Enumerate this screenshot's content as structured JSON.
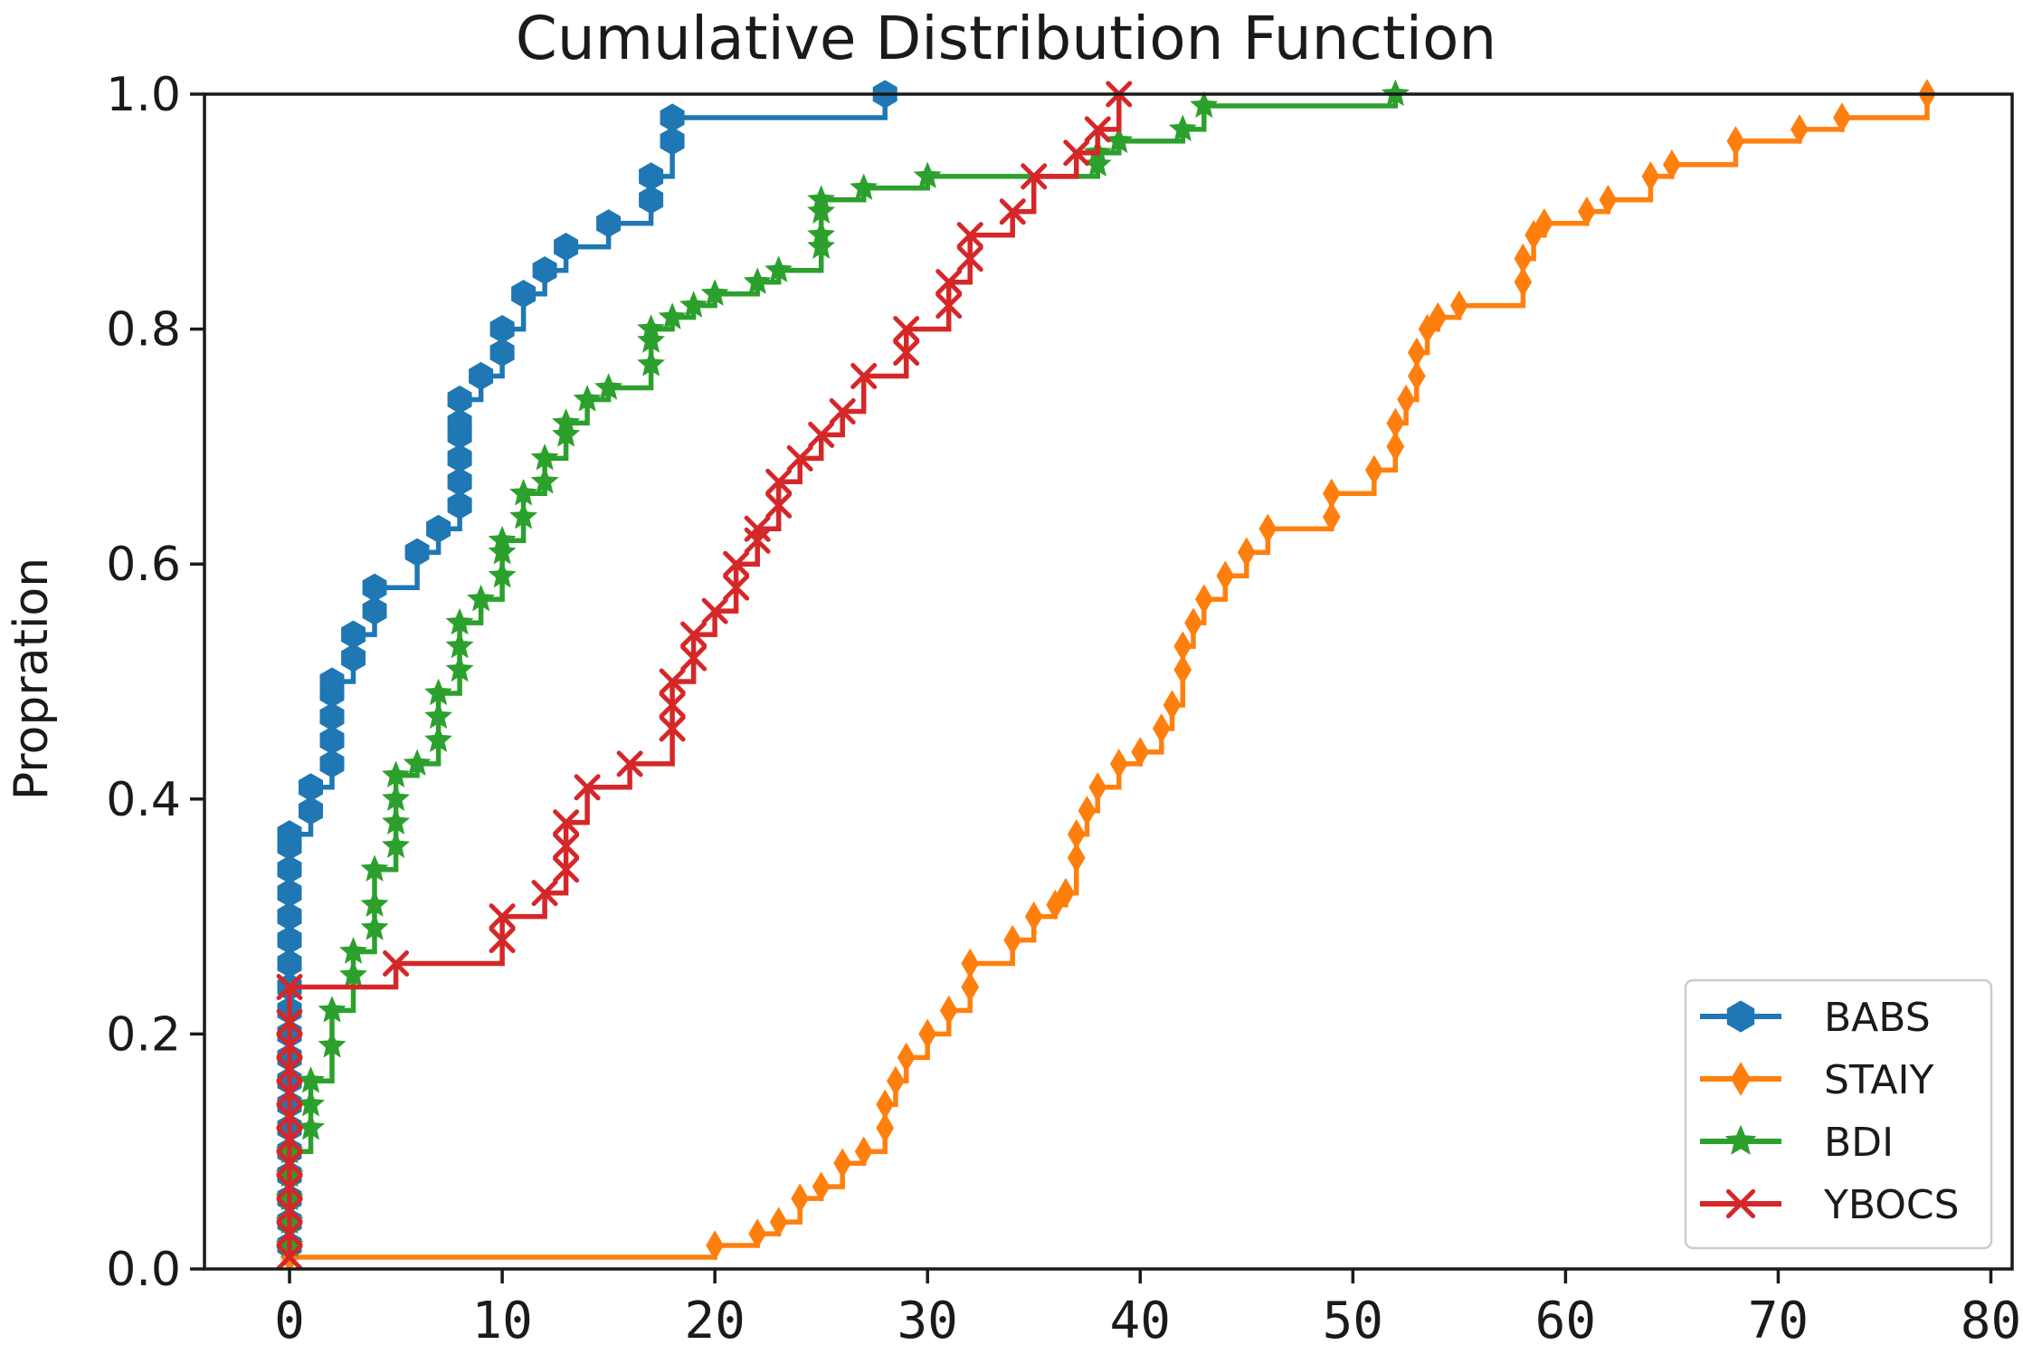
{
  "chart_data": {
    "type": "line",
    "title": "Cumulative Distribution Function",
    "xlabel": "",
    "ylabel": "Propration",
    "xlim": [
      -4,
      81
    ],
    "ylim": [
      0,
      1
    ],
    "x_ticks": [
      0,
      10,
      20,
      30,
      40,
      50,
      60,
      70,
      80
    ],
    "y_ticks": [
      0.0,
      0.2,
      0.4,
      0.6,
      0.8,
      1.0
    ],
    "y_tick_labels": [
      "0.0",
      "0.2",
      "0.4",
      "0.6",
      "0.8",
      "1.0"
    ],
    "grid": false,
    "legend_position": "lower-right",
    "series": [
      {
        "name": "BABS",
        "color": "#1f77b4",
        "marker": "hexagon",
        "x": [
          0,
          0,
          0,
          0,
          0,
          0,
          0,
          0,
          0,
          0,
          0,
          0,
          0,
          0,
          0,
          0,
          0,
          0,
          0,
          1,
          1,
          2,
          2,
          2,
          2,
          2,
          3,
          3,
          4,
          4,
          6,
          7,
          8,
          8,
          8,
          8,
          8,
          8,
          9,
          10,
          10,
          11,
          12,
          13,
          15,
          17,
          17,
          18,
          18,
          28
        ],
        "y": [
          0.02,
          0.04,
          0.06,
          0.08,
          0.1,
          0.12,
          0.14,
          0.16,
          0.18,
          0.2,
          0.22,
          0.24,
          0.26,
          0.28,
          0.3,
          0.32,
          0.34,
          0.36,
          0.37,
          0.39,
          0.41,
          0.43,
          0.45,
          0.47,
          0.49,
          0.5,
          0.52,
          0.54,
          0.56,
          0.58,
          0.61,
          0.63,
          0.65,
          0.67,
          0.69,
          0.71,
          0.72,
          0.74,
          0.76,
          0.78,
          0.8,
          0.83,
          0.85,
          0.87,
          0.89,
          0.91,
          0.93,
          0.96,
          0.98,
          1.0
        ]
      },
      {
        "name": "STAIY",
        "color": "#ff7f0e",
        "marker": "diamond",
        "x": [
          0,
          20,
          22,
          23,
          24,
          25,
          26,
          27,
          28,
          28,
          28.5,
          29,
          30,
          31,
          32,
          32,
          34,
          35,
          36,
          36.5,
          37,
          37,
          37.5,
          38,
          39,
          40,
          41,
          41.5,
          42,
          42,
          42.5,
          43,
          44,
          45,
          46,
          49,
          49,
          51,
          52,
          52,
          52.5,
          53,
          53,
          53.5,
          54,
          55,
          58,
          58,
          58.5,
          59,
          61,
          62,
          64,
          65,
          68,
          71,
          73,
          77
        ],
        "y": [
          0.01,
          0.02,
          0.03,
          0.04,
          0.06,
          0.07,
          0.09,
          0.1,
          0.12,
          0.14,
          0.16,
          0.18,
          0.2,
          0.22,
          0.24,
          0.26,
          0.28,
          0.3,
          0.31,
          0.32,
          0.35,
          0.37,
          0.39,
          0.41,
          0.43,
          0.44,
          0.46,
          0.48,
          0.51,
          0.53,
          0.55,
          0.57,
          0.59,
          0.61,
          0.63,
          0.64,
          0.66,
          0.68,
          0.7,
          0.72,
          0.74,
          0.76,
          0.78,
          0.8,
          0.81,
          0.82,
          0.84,
          0.86,
          0.88,
          0.89,
          0.9,
          0.91,
          0.93,
          0.94,
          0.96,
          0.97,
          0.98,
          1.0
        ]
      },
      {
        "name": "BDI",
        "color": "#2ca02c",
        "marker": "star",
        "x": [
          0,
          0,
          0,
          0,
          0,
          1,
          1,
          1,
          2,
          2,
          3,
          3,
          4,
          4,
          4,
          5,
          5,
          5,
          5,
          6,
          7,
          7,
          7,
          8,
          8,
          8,
          9,
          10,
          10,
          10,
          11,
          11,
          12,
          12,
          13,
          13,
          14,
          15,
          17,
          17,
          17,
          18,
          19,
          20,
          22,
          23,
          25,
          25,
          25,
          25,
          27,
          30,
          38,
          38,
          39,
          42,
          43,
          52
        ],
        "y": [
          0.02,
          0.04,
          0.06,
          0.08,
          0.1,
          0.12,
          0.14,
          0.16,
          0.19,
          0.22,
          0.25,
          0.27,
          0.29,
          0.31,
          0.34,
          0.36,
          0.38,
          0.4,
          0.42,
          0.43,
          0.45,
          0.47,
          0.49,
          0.51,
          0.53,
          0.55,
          0.57,
          0.59,
          0.61,
          0.62,
          0.64,
          0.66,
          0.67,
          0.69,
          0.71,
          0.72,
          0.74,
          0.75,
          0.77,
          0.79,
          0.8,
          0.81,
          0.82,
          0.83,
          0.84,
          0.85,
          0.87,
          0.88,
          0.9,
          0.91,
          0.92,
          0.93,
          0.94,
          0.95,
          0.96,
          0.97,
          0.99,
          1.0
        ]
      },
      {
        "name": "YBOCS",
        "color": "#d62728",
        "marker": "x",
        "x": [
          0,
          0,
          0,
          0,
          0,
          0,
          0,
          0,
          0,
          0,
          0,
          0,
          5,
          10,
          10,
          12,
          13,
          13,
          13,
          14,
          16,
          18,
          18,
          18,
          19,
          19,
          20,
          21,
          21,
          22,
          22,
          23,
          23,
          24,
          25,
          26,
          27,
          29,
          29,
          31,
          31,
          32,
          32,
          34,
          35,
          37,
          38,
          39
        ],
        "y": [
          0.01,
          0.03,
          0.05,
          0.07,
          0.09,
          0.11,
          0.13,
          0.15,
          0.17,
          0.19,
          0.21,
          0.24,
          0.26,
          0.28,
          0.3,
          0.32,
          0.34,
          0.36,
          0.38,
          0.41,
          0.43,
          0.46,
          0.48,
          0.5,
          0.52,
          0.54,
          0.56,
          0.58,
          0.6,
          0.62,
          0.63,
          0.65,
          0.67,
          0.69,
          0.71,
          0.73,
          0.76,
          0.78,
          0.8,
          0.82,
          0.84,
          0.86,
          0.88,
          0.9,
          0.93,
          0.95,
          0.97,
          1.0
        ]
      }
    ]
  }
}
